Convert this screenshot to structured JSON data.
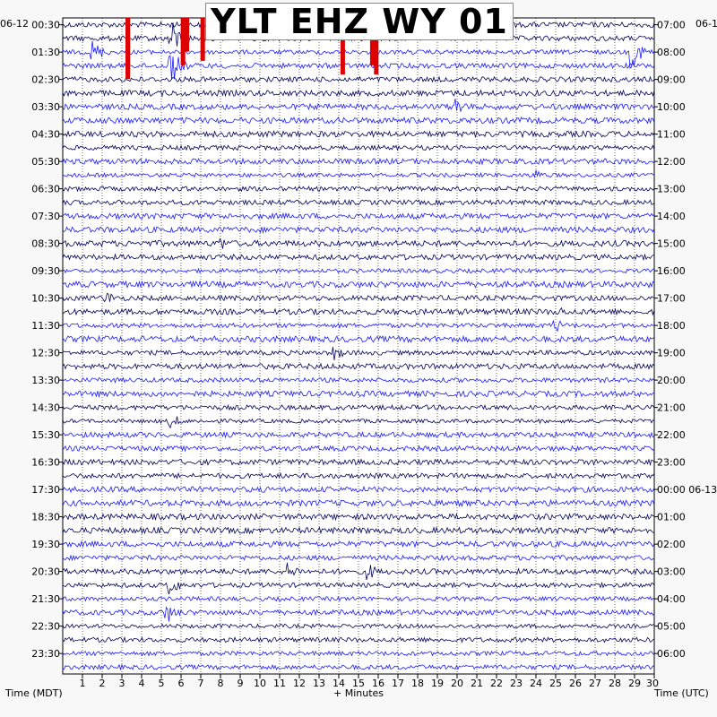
{
  "title": "YLT EHZ WY 01",
  "left_date": "06-12",
  "right_date": "06-1",
  "right_date_change": "06-13",
  "xlabel": "+ Minutes",
  "left_axis_label": "Time (MDT)",
  "right_axis_label": "Time (UTC)",
  "colors": {
    "trace_dark": "#00005a",
    "trace_blue": "#1a1aff",
    "event_red": "#dd0000",
    "grid": "#000000",
    "background": "#ffffff"
  },
  "chart_data": {
    "type": "line",
    "description_note": "",
    "xlim": [
      0,
      30
    ],
    "x_ticks": [
      "1",
      "2",
      "3",
      "4",
      "5",
      "6",
      "7",
      "8",
      "9",
      "10",
      "11",
      "12",
      "13",
      "14",
      "15",
      "16",
      "17",
      "18",
      "19",
      "20",
      "21",
      "22",
      "23",
      "24",
      "25",
      "26",
      "27",
      "28",
      "29",
      "30"
    ],
    "left_ticks": [
      "00:30",
      "01:30",
      "02:30",
      "03:30",
      "04:30",
      "05:30",
      "06:30",
      "07:30",
      "08:30",
      "09:30",
      "10:30",
      "11:30",
      "12:30",
      "13:30",
      "14:30",
      "15:30",
      "16:30",
      "17:30",
      "18:30",
      "19:30",
      "20:30",
      "21:30",
      "22:30",
      "23:30"
    ],
    "right_ticks": [
      "07:00",
      "08:00",
      "09:00",
      "10:00",
      "11:00",
      "12:00",
      "13:00",
      "14:00",
      "15:00",
      "16:00",
      "17:00",
      "18:00",
      "19:00",
      "20:00",
      "21:00",
      "22:00",
      "23:00",
      "00:00 06-13",
      "01:00",
      "02:00",
      "03:00",
      "04:00",
      "05:00",
      "06:00"
    ],
    "traces_per_hour": 2,
    "trace_count": 48,
    "color_cycle": [
      "dark",
      "dark",
      "blue",
      "blue"
    ],
    "events": [
      {
        "trace": 0,
        "minute": 3.3,
        "amp": 40,
        "red": true
      },
      {
        "trace": 1,
        "minute": 3.3,
        "amp": 40,
        "red": true
      },
      {
        "trace": 2,
        "minute": 3.3,
        "amp": 30,
        "red": true
      },
      {
        "trace": 0,
        "minute": 6.3,
        "amp": 30,
        "red": true
      },
      {
        "trace": 1,
        "minute": 6.1,
        "amp": 30,
        "red": true
      },
      {
        "trace": 1,
        "minute": 7.1,
        "amp": 25,
        "red": true
      },
      {
        "trace": 2,
        "minute": 14.2,
        "amp": 25,
        "red": true
      },
      {
        "trace": 1,
        "minute": 15.7,
        "amp": 30,
        "red": true
      },
      {
        "trace": 2,
        "minute": 15.9,
        "amp": 25,
        "red": true
      },
      {
        "trace": 0,
        "minute": 10.0,
        "amp": 18,
        "red": false
      },
      {
        "trace": 1,
        "minute": 5.5,
        "amp": 22,
        "red": false
      },
      {
        "trace": 2,
        "minute": 1.5,
        "amp": 14,
        "red": false
      },
      {
        "trace": 3,
        "minute": 5.5,
        "amp": 20,
        "red": false
      },
      {
        "trace": 2,
        "minute": 28.9,
        "amp": 18,
        "red": false
      },
      {
        "trace": 6,
        "minute": 20.0,
        "amp": 12,
        "red": false
      },
      {
        "trace": 11,
        "minute": 23.9,
        "amp": 8,
        "red": false
      },
      {
        "trace": 16,
        "minute": 8.0,
        "amp": 9,
        "red": false
      },
      {
        "trace": 20,
        "minute": 2.2,
        "amp": 9,
        "red": false
      },
      {
        "trace": 21,
        "minute": 25.2,
        "amp": 6,
        "red": false
      },
      {
        "trace": 22,
        "minute": 25.0,
        "amp": 8,
        "red": false
      },
      {
        "trace": 24,
        "minute": 13.8,
        "amp": 9,
        "red": false
      },
      {
        "trace": 29,
        "minute": 5.5,
        "amp": 9,
        "red": false
      },
      {
        "trace": 40,
        "minute": 11.5,
        "amp": 10,
        "red": false
      },
      {
        "trace": 40,
        "minute": 15.5,
        "amp": 10,
        "red": false
      },
      {
        "trace": 41,
        "minute": 5.4,
        "amp": 12,
        "red": false
      },
      {
        "trace": 43,
        "minute": 5.3,
        "amp": 12,
        "red": false
      }
    ]
  }
}
